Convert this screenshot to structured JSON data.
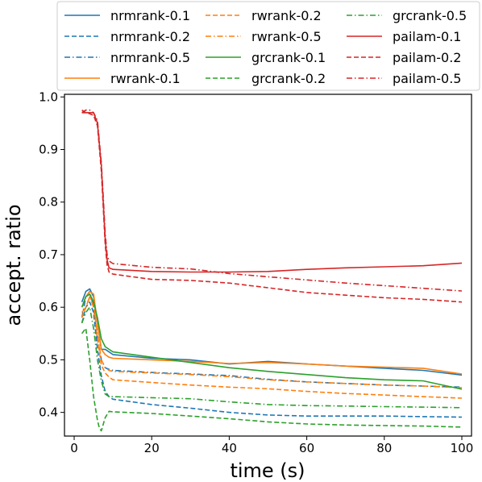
{
  "chart_data": {
    "type": "line",
    "title": "",
    "xlabel": "time (s)",
    "ylabel": "accept. ratio",
    "xlim": [
      -2.5,
      102.5
    ],
    "ylim": [
      0.355,
      1.005
    ],
    "xticks": [
      0,
      20,
      40,
      60,
      80,
      100
    ],
    "yticks": [
      0.4,
      0.5,
      0.6,
      0.7,
      0.8,
      0.9,
      1.0
    ],
    "xtick_labels": [
      "0",
      "20",
      "40",
      "60",
      "80",
      "100"
    ],
    "ytick_labels": [
      "0.4",
      "0.5",
      "0.6",
      "0.7",
      "0.8",
      "0.9",
      "1.0"
    ],
    "grid": false,
    "legend_position": "top",
    "legend_columns": 3,
    "series": [
      {
        "name": "nrmrank-0.1",
        "color": "#1f77b4",
        "style": "solid",
        "x": [
          2,
          3,
          4,
          5,
          6,
          7,
          8,
          9,
          10,
          20,
          30,
          40,
          50,
          60,
          70,
          80,
          90,
          100
        ],
        "y": [
          0.61,
          0.63,
          0.635,
          0.62,
          0.57,
          0.52,
          0.52,
          0.515,
          0.51,
          0.503,
          0.5,
          0.492,
          0.497,
          0.492,
          0.488,
          0.484,
          0.48,
          0.471
        ]
      },
      {
        "name": "nrmrank-0.2",
        "color": "#1f77b4",
        "style": "dashed",
        "x": [
          2,
          3,
          4,
          5,
          6,
          7,
          8,
          9,
          10,
          20,
          30,
          40,
          50,
          60,
          70,
          80,
          90,
          100
        ],
        "y": [
          0.57,
          0.6,
          0.61,
          0.59,
          0.52,
          0.47,
          0.44,
          0.43,
          0.425,
          0.415,
          0.408,
          0.4,
          0.395,
          0.393,
          0.393,
          0.393,
          0.392,
          0.391
        ]
      },
      {
        "name": "nrmrank-0.5",
        "color": "#1f77b4",
        "style": "dashdot",
        "x": [
          2,
          3,
          4,
          5,
          6,
          7,
          8,
          9,
          10,
          20,
          30,
          40,
          50,
          60,
          70,
          80,
          90,
          100
        ],
        "y": [
          0.58,
          0.62,
          0.63,
          0.6,
          0.54,
          0.5,
          0.485,
          0.482,
          0.48,
          0.476,
          0.473,
          0.47,
          0.463,
          0.458,
          0.455,
          0.452,
          0.45,
          0.448
        ]
      },
      {
        "name": "rwrank-0.1",
        "color": "#ff7f0e",
        "style": "solid",
        "x": [
          2,
          3,
          4,
          5,
          6,
          7,
          8,
          9,
          10,
          20,
          30,
          40,
          50,
          60,
          70,
          80,
          90,
          100
        ],
        "y": [
          0.6,
          0.62,
          0.63,
          0.625,
          0.57,
          0.52,
          0.51,
          0.505,
          0.503,
          0.5,
          0.497,
          0.493,
          0.495,
          0.492,
          0.488,
          0.486,
          0.484,
          0.473
        ]
      },
      {
        "name": "rwrank-0.2",
        "color": "#ff7f0e",
        "style": "dashed",
        "x": [
          2,
          3,
          4,
          5,
          6,
          7,
          8,
          9,
          10,
          20,
          30,
          40,
          50,
          60,
          70,
          80,
          90,
          100
        ],
        "y": [
          0.58,
          0.6,
          0.62,
          0.61,
          0.54,
          0.49,
          0.475,
          0.467,
          0.462,
          0.457,
          0.452,
          0.448,
          0.445,
          0.44,
          0.436,
          0.433,
          0.43,
          0.427
        ]
      },
      {
        "name": "rwrank-0.5",
        "color": "#ff7f0e",
        "style": "dashdot",
        "x": [
          2,
          3,
          4,
          5,
          6,
          7,
          8,
          9,
          10,
          20,
          30,
          40,
          50,
          60,
          70,
          80,
          90,
          100
        ],
        "y": [
          0.59,
          0.6,
          0.62,
          0.6,
          0.55,
          0.5,
          0.485,
          0.48,
          0.478,
          0.475,
          0.472,
          0.468,
          0.462,
          0.458,
          0.455,
          0.452,
          0.45,
          0.447
        ]
      },
      {
        "name": "grcrank-0.1",
        "color": "#2ca02c",
        "style": "solid",
        "x": [
          2,
          3,
          4,
          5,
          6,
          7,
          8,
          9,
          10,
          20,
          30,
          40,
          50,
          60,
          70,
          80,
          90,
          100
        ],
        "y": [
          0.6,
          0.62,
          0.625,
          0.61,
          0.58,
          0.54,
          0.525,
          0.52,
          0.515,
          0.505,
          0.495,
          0.485,
          0.478,
          0.472,
          0.466,
          0.462,
          0.46,
          0.444
        ]
      },
      {
        "name": "grcrank-0.2",
        "color": "#2ca02c",
        "style": "dashed",
        "x": [
          2,
          3,
          4,
          5,
          6,
          6.5,
          7,
          8,
          9,
          10,
          20,
          30,
          40,
          50,
          60,
          70,
          80,
          90,
          100
        ],
        "y": [
          0.55,
          0.56,
          0.5,
          0.43,
          0.385,
          0.37,
          0.365,
          0.39,
          0.402,
          0.401,
          0.398,
          0.393,
          0.388,
          0.382,
          0.378,
          0.376,
          0.375,
          0.374,
          0.372
        ]
      },
      {
        "name": "grcrank-0.5",
        "color": "#2ca02c",
        "style": "dashdot",
        "x": [
          2,
          3,
          4,
          5,
          6,
          7,
          8,
          9,
          10,
          20,
          30,
          40,
          50,
          60,
          70,
          80,
          90,
          100
        ],
        "y": [
          0.57,
          0.59,
          0.6,
          0.56,
          0.5,
          0.46,
          0.435,
          0.43,
          0.43,
          0.428,
          0.426,
          0.42,
          0.415,
          0.413,
          0.412,
          0.411,
          0.41,
          0.409
        ]
      },
      {
        "name": "pailam-0.1",
        "color": "#d62728",
        "style": "solid",
        "x": [
          2,
          3,
          4,
          5,
          6,
          7,
          7.5,
          8,
          8.5,
          9,
          10,
          20,
          30,
          40,
          50,
          60,
          70,
          80,
          90,
          100
        ],
        "y": [
          0.97,
          0.97,
          0.97,
          0.97,
          0.95,
          0.87,
          0.8,
          0.73,
          0.69,
          0.675,
          0.672,
          0.668,
          0.667,
          0.667,
          0.668,
          0.672,
          0.675,
          0.677,
          0.679,
          0.684
        ]
      },
      {
        "name": "pailam-0.2",
        "color": "#d62728",
        "style": "dashed",
        "x": [
          2,
          3,
          4,
          5,
          6,
          7,
          7.5,
          8,
          8.5,
          9,
          10,
          20,
          30,
          40,
          50,
          60,
          70,
          80,
          90,
          100
        ],
        "y": [
          0.975,
          0.97,
          0.968,
          0.965,
          0.945,
          0.86,
          0.79,
          0.72,
          0.68,
          0.667,
          0.663,
          0.653,
          0.651,
          0.646,
          0.637,
          0.628,
          0.623,
          0.618,
          0.615,
          0.61
        ]
      },
      {
        "name": "pailam-0.5",
        "color": "#d62728",
        "style": "dashdot",
        "x": [
          2,
          3,
          4,
          5,
          6,
          7,
          7.5,
          8,
          8.5,
          9,
          10,
          20,
          30,
          40,
          50,
          60,
          70,
          80,
          90,
          100
        ],
        "y": [
          0.97,
          0.975,
          0.975,
          0.97,
          0.955,
          0.875,
          0.81,
          0.74,
          0.7,
          0.688,
          0.683,
          0.676,
          0.673,
          0.664,
          0.658,
          0.652,
          0.646,
          0.641,
          0.636,
          0.631
        ]
      }
    ]
  }
}
